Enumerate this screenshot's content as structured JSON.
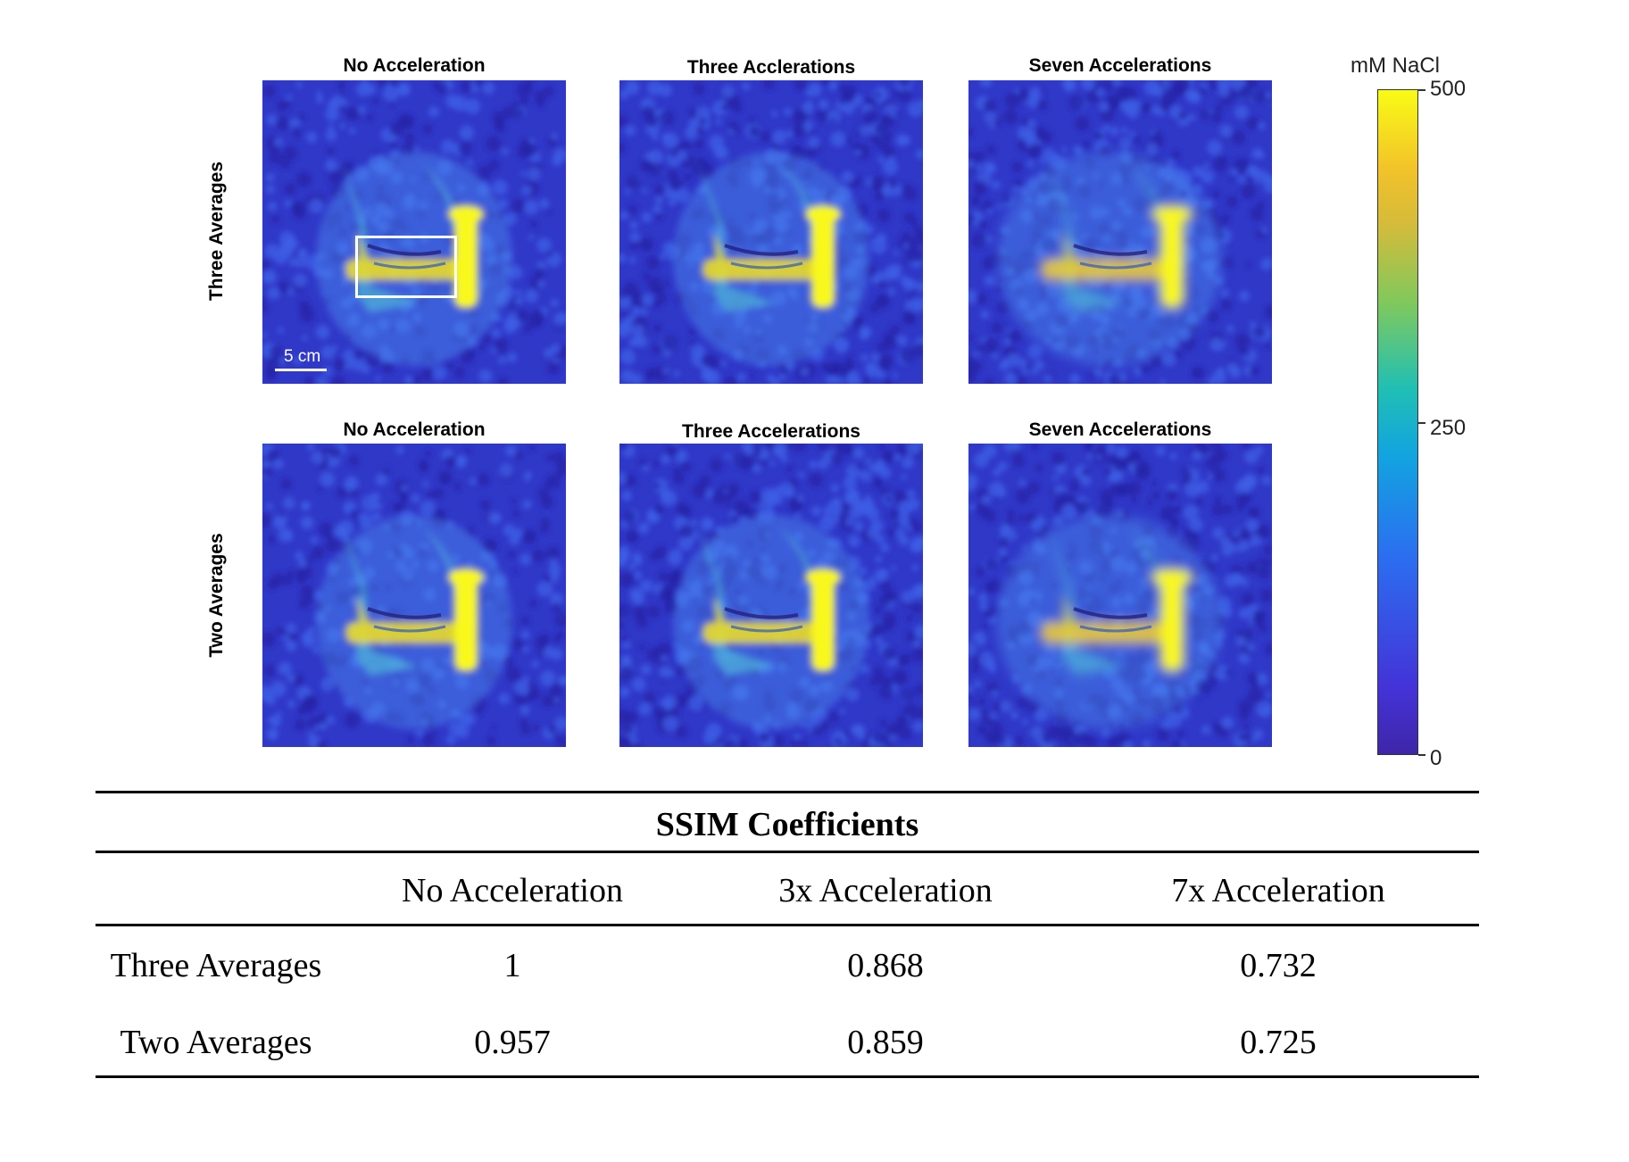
{
  "figure": {
    "panels": [
      {
        "title": "No Acceleration",
        "row": "Three Averages",
        "variant": "none",
        "roi_box": true,
        "scale_bar_label": "5 cm"
      },
      {
        "title": "Three Acclerations",
        "row": "Three Averages",
        "variant": "three"
      },
      {
        "title": "Seven Accelerations",
        "row": "Three Averages",
        "variant": "seven"
      },
      {
        "title": "No Acceleration",
        "row": "Two Averages",
        "variant": "none"
      },
      {
        "title": "Three Accelerations",
        "row": "Two Averages",
        "variant": "three"
      },
      {
        "title": "Seven Accelerations",
        "row": "Two Averages",
        "variant": "seven"
      }
    ],
    "row_labels": [
      "Three Averages",
      "Two Averages"
    ],
    "colorbar": {
      "label": "mM NaCl",
      "ticks": [
        "500",
        "250",
        "0"
      ],
      "colormap": "parula",
      "colors": [
        "#3e26a8",
        "#2b6ff0",
        "#12a4e0",
        "#20bfb4",
        "#80c95c",
        "#f2b83a",
        "#f9fb15"
      ]
    }
  },
  "table": {
    "title": "SSIM Coefficients",
    "columns": [
      "No Acceleration",
      "3x Acceleration",
      "7x Acceleration"
    ],
    "rows": [
      {
        "label": "Three Averages",
        "values": [
          "1",
          "0.868",
          "0.732"
        ]
      },
      {
        "label": "Two Averages",
        "values": [
          "0.957",
          "0.859",
          "0.725"
        ]
      }
    ]
  }
}
